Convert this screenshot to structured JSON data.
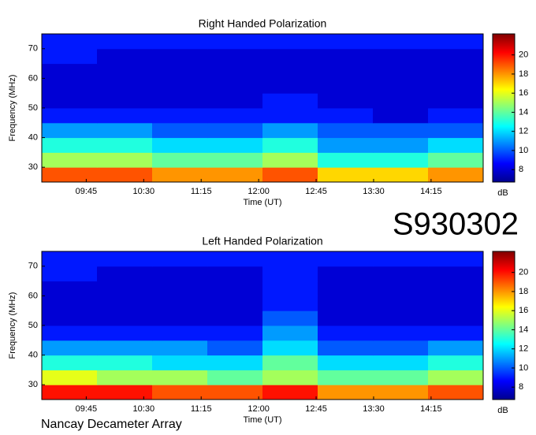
{
  "chart_data": [
    {
      "type": "heatmap",
      "title": "Right Handed Polarization",
      "xlabel": "Time (UT)",
      "ylabel": "Frequency (MHz)",
      "colorbar_label": "dB",
      "colormap": "jet",
      "xlim": [
        9.17,
        14.93
      ],
      "ylim": [
        25,
        75
      ],
      "xticks": [
        {
          "value": 9.75,
          "label": "09:45"
        },
        {
          "value": 10.5,
          "label": "10:30"
        },
        {
          "value": 11.25,
          "label": "11:15"
        },
        {
          "value": 12,
          "label": "12:00"
        },
        {
          "value": 12.75,
          "label": "12:45"
        },
        {
          "value": 13.5,
          "label": "13:30"
        },
        {
          "value": 14.25,
          "label": "14:15"
        }
      ],
      "yticks": [
        30,
        40,
        50,
        60,
        70
      ],
      "clim": [
        6.7,
        22.2
      ],
      "cticks": [
        8,
        10,
        12,
        14,
        16,
        18,
        20
      ],
      "x_edges": [
        9.17,
        9.89,
        10.61,
        11.33,
        12.05,
        12.77,
        13.49,
        14.21,
        14.93
      ],
      "y_edges": [
        25,
        30,
        35,
        40,
        45,
        50,
        55,
        60,
        65,
        70,
        75
      ],
      "z": [
        [
          19,
          19,
          18,
          18,
          19,
          17,
          17,
          18
        ],
        [
          15,
          15,
          14,
          14,
          15,
          13,
          13,
          14
        ],
        [
          13,
          13,
          12,
          12,
          13,
          11,
          11,
          12
        ],
        [
          11,
          11,
          10,
          10,
          11,
          10,
          10,
          10
        ],
        [
          9,
          9,
          9,
          9,
          9,
          9,
          8,
          9
        ],
        [
          8,
          8,
          8,
          8,
          9,
          8,
          8,
          8
        ],
        [
          8,
          8,
          8,
          8,
          8,
          8,
          8,
          8
        ],
        [
          8,
          8,
          8,
          8,
          8,
          8,
          8,
          8
        ],
        [
          9,
          8,
          8,
          8,
          8,
          8,
          8,
          8
        ],
        [
          9,
          9,
          9,
          9,
          9,
          9,
          9,
          9
        ]
      ]
    },
    {
      "type": "heatmap",
      "title": "Left Handed Polarization",
      "xlabel": "Time (UT)",
      "ylabel": "Frequency (MHz)",
      "colorbar_label": "dB",
      "colormap": "jet",
      "xlim": [
        9.17,
        14.93
      ],
      "ylim": [
        25,
        75
      ],
      "xticks": [
        {
          "value": 9.75,
          "label": "09:45"
        },
        {
          "value": 10.5,
          "label": "10:30"
        },
        {
          "value": 11.25,
          "label": "11:15"
        },
        {
          "value": 12,
          "label": "12:00"
        },
        {
          "value": 12.75,
          "label": "12:45"
        },
        {
          "value": 13.5,
          "label": "13:30"
        },
        {
          "value": 14.25,
          "label": "14:15"
        }
      ],
      "yticks": [
        30,
        40,
        50,
        60,
        70
      ],
      "clim": [
        6.7,
        22.2
      ],
      "cticks": [
        8,
        10,
        12,
        14,
        16,
        18,
        20
      ],
      "x_edges": [
        9.17,
        9.89,
        10.61,
        11.33,
        12.05,
        12.77,
        13.49,
        14.21,
        14.93
      ],
      "y_edges": [
        25,
        30,
        35,
        40,
        45,
        50,
        55,
        60,
        65,
        70,
        75
      ],
      "z": [
        [
          20,
          20,
          19,
          19,
          20,
          18,
          18,
          19
        ],
        [
          16,
          15,
          15,
          14,
          15,
          14,
          14,
          15
        ],
        [
          13,
          13,
          12,
          12,
          14,
          12,
          12,
          13
        ],
        [
          11,
          11,
          11,
          10,
          12,
          10,
          10,
          11
        ],
        [
          9,
          9,
          9,
          9,
          11,
          9,
          9,
          9
        ],
        [
          8,
          8,
          8,
          8,
          10,
          8,
          8,
          8
        ],
        [
          8,
          8,
          8,
          8,
          9,
          8,
          8,
          8
        ],
        [
          8,
          8,
          8,
          8,
          9,
          8,
          8,
          8
        ],
        [
          9,
          8,
          8,
          8,
          9,
          8,
          8,
          8
        ],
        [
          9,
          9,
          9,
          9,
          9,
          9,
          9,
          9
        ]
      ]
    }
  ],
  "annotations": {
    "observation_id": "S930302",
    "instrument": "Nancay Decameter Array"
  }
}
